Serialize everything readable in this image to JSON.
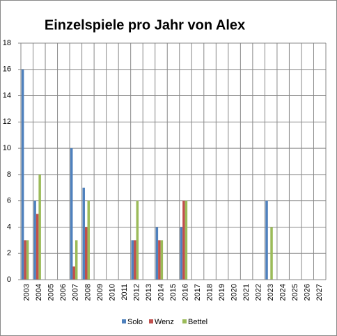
{
  "chart_data": {
    "type": "bar",
    "title": "Einzelspiele pro Jahr von Alex",
    "categories": [
      "2003",
      "2004",
      "2005",
      "2006",
      "2007",
      "2008",
      "2009",
      "2010",
      "2011",
      "2012",
      "2013",
      "2014",
      "2015",
      "2016",
      "2017",
      "2018",
      "2019",
      "2020",
      "2021",
      "2022",
      "2023",
      "2024",
      "2025",
      "2026",
      "2027"
    ],
    "series": [
      {
        "name": "Solo",
        "color": "#4f81bd",
        "values": [
          16,
          6,
          null,
          null,
          10,
          7,
          null,
          null,
          null,
          3,
          null,
          4,
          null,
          4,
          null,
          null,
          null,
          null,
          null,
          null,
          6,
          null,
          null,
          null,
          null
        ]
      },
      {
        "name": "Wenz",
        "color": "#c0504d",
        "values": [
          3,
          5,
          null,
          null,
          1,
          4,
          null,
          null,
          null,
          3,
          null,
          3,
          null,
          6,
          null,
          null,
          null,
          null,
          null,
          null,
          null,
          null,
          null,
          null,
          null
        ]
      },
      {
        "name": "Bettel",
        "color": "#9bbb59",
        "values": [
          3,
          8,
          null,
          null,
          3,
          6,
          null,
          null,
          null,
          6,
          null,
          3,
          null,
          6,
          null,
          null,
          null,
          null,
          null,
          null,
          4,
          null,
          null,
          null,
          null
        ]
      }
    ],
    "ylim": [
      0,
      18
    ],
    "yticks": [
      0,
      2,
      4,
      6,
      8,
      10,
      12,
      14,
      16,
      18
    ],
    "grid": true,
    "legend": "bottom"
  }
}
